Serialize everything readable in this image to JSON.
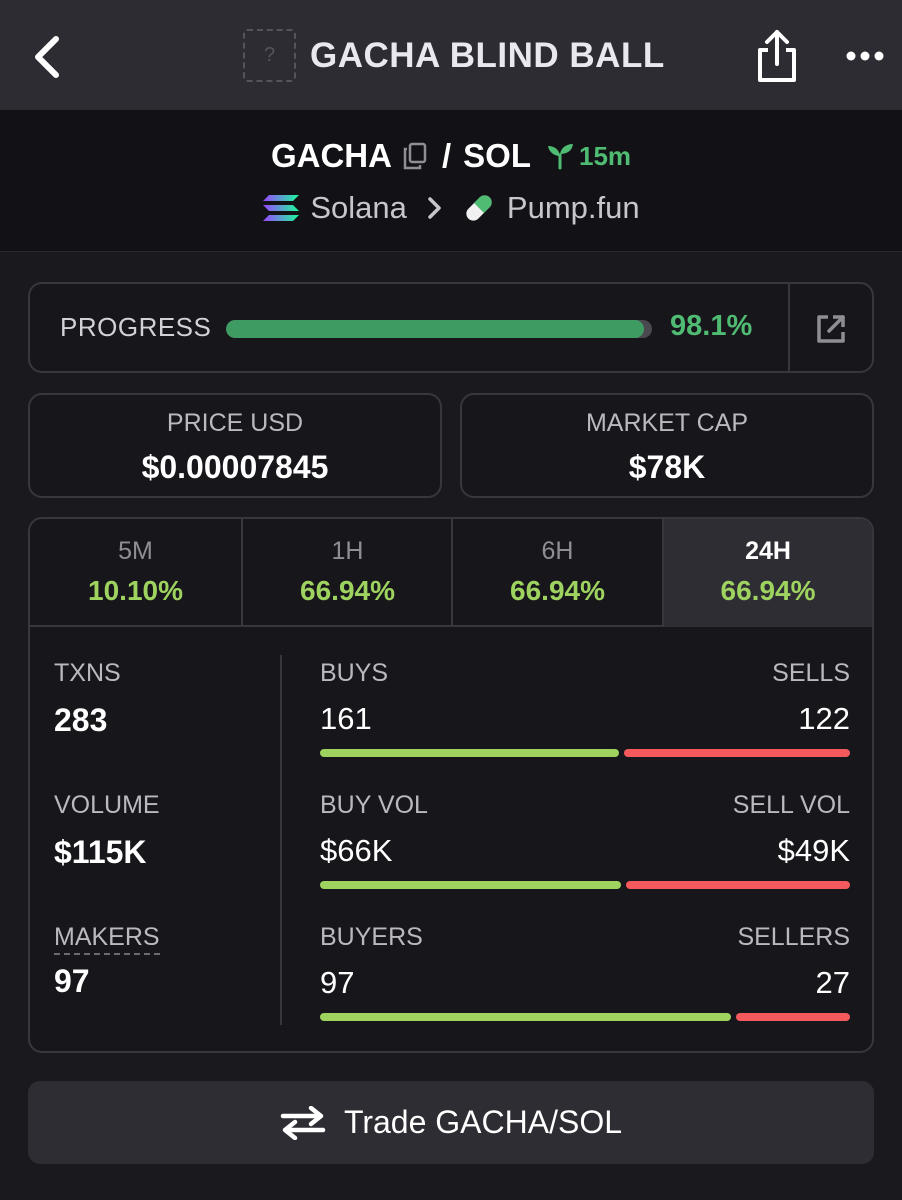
{
  "header": {
    "title": "GACHA BLIND BALL",
    "thumb_placeholder": "?",
    "icons": {
      "back": "chevron-left-icon",
      "share": "share-icon",
      "more": "more-horizontal-icon"
    }
  },
  "pair": {
    "base": "GACHA",
    "separator": "/",
    "quote": "SOL",
    "age": "15m",
    "chain": "Solana",
    "dex": "Pump.fun",
    "accent": "#4fbb73"
  },
  "progress": {
    "label": "PROGRESS",
    "value_text": "98.1%",
    "percent": 98.1
  },
  "stats": {
    "price_label": "PRICE USD",
    "price_value": "$0.00007845",
    "mcap_label": "MARKET CAP",
    "mcap_value": "$78K"
  },
  "timeframes": [
    {
      "label": "5M",
      "change": "10.10%"
    },
    {
      "label": "1H",
      "change": "66.94%"
    },
    {
      "label": "6H",
      "change": "66.94%"
    },
    {
      "label": "24H",
      "change": "66.94%",
      "selected": true
    }
  ],
  "metrics": {
    "txns_label": "TXNS",
    "txns_value": "283",
    "volume_label": "VOLUME",
    "volume_value": "$115K",
    "makers_label": "MAKERS",
    "makers_value": "97"
  },
  "splits": {
    "txns": {
      "left_label": "BUYS",
      "right_label": "SELLS",
      "left_value": "161",
      "right_value": "122",
      "left": 161,
      "right": 122
    },
    "volume": {
      "left_label": "BUY VOL",
      "right_label": "SELL VOL",
      "left_value": "$66K",
      "right_value": "$49K",
      "left": 66,
      "right": 49
    },
    "makers": {
      "left_label": "BUYERS",
      "right_label": "SELLERS",
      "left_value": "97",
      "right_value": "27",
      "left": 97,
      "right": 27
    }
  },
  "trade": {
    "label": "Trade GACHA/SOL"
  },
  "colors": {
    "buy": "#9ed35f",
    "sell": "#f45a5d",
    "progress": "#3e9c63"
  }
}
